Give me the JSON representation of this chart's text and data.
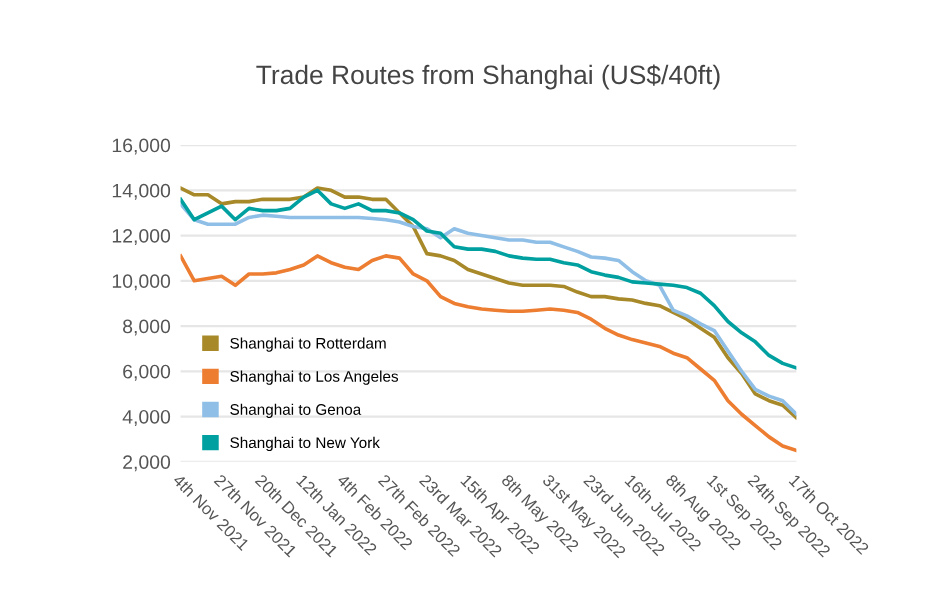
{
  "chart_data": {
    "type": "line",
    "title": "Trade Routes from Shanghai (US$/40ft)",
    "categories": [
      "4th Nov 2021",
      null,
      null,
      "27th Nov 2021",
      null,
      null,
      "20th Dec 2021",
      null,
      null,
      "12th Jan 2022",
      null,
      null,
      "4th Feb 2022",
      null,
      null,
      "27th Feb 2022",
      null,
      null,
      "23rd Mar 2022",
      null,
      null,
      "15th Apr 2022",
      null,
      null,
      "8th May 2022",
      null,
      null,
      "31st May 2022",
      null,
      null,
      "23rd Jun 2022",
      null,
      null,
      "16th Jul 2022",
      null,
      null,
      "8th Aug 2022",
      null,
      null,
      "1st Sep 2022",
      null,
      null,
      "24th Sep 2022",
      null,
      null,
      "17th Oct 2022"
    ],
    "series": [
      {
        "name": "Shanghai to Rotterdam",
        "color": "#a8892a",
        "values": [
          14100,
          13800,
          13800,
          13400,
          13500,
          13500,
          13600,
          13600,
          13600,
          13700,
          14100,
          14000,
          13700,
          13700,
          13600,
          13600,
          13000,
          12400,
          11200,
          11100,
          10900,
          10500,
          10300,
          10100,
          9900,
          9800,
          9800,
          9800,
          9750,
          9500,
          9300,
          9300,
          9200,
          9150,
          9000,
          8900,
          8600,
          8300,
          7900,
          7500,
          6600,
          5900,
          5000,
          4700,
          4500,
          3950
        ]
      },
      {
        "name": "Shanghai to Los Angeles",
        "color": "#ed7d31",
        "values": [
          11100,
          10000,
          10100,
          10200,
          9800,
          10300,
          10300,
          10350,
          10500,
          10700,
          11100,
          10800,
          10600,
          10500,
          10900,
          11100,
          11000,
          10300,
          10000,
          9300,
          9000,
          8850,
          8750,
          8700,
          8650,
          8650,
          8700,
          8750,
          8700,
          8600,
          8300,
          7900,
          7600,
          7400,
          7250,
          7100,
          6800,
          6600,
          6100,
          5600,
          4700,
          4100,
          3600,
          3100,
          2700,
          2500
        ]
      },
      {
        "name": "Shanghai to Genoa",
        "color": "#8fbfe6",
        "values": [
          13400,
          12700,
          12500,
          12500,
          12500,
          12800,
          12900,
          12850,
          12800,
          12800,
          12800,
          12800,
          12800,
          12800,
          12750,
          12700,
          12600,
          12400,
          12300,
          11900,
          12300,
          12100,
          12000,
          11900,
          11800,
          11800,
          11700,
          11700,
          11500,
          11300,
          11050,
          11000,
          10900,
          10400,
          10000,
          9800,
          8700,
          8450,
          8100,
          7800,
          6900,
          6000,
          5200,
          4900,
          4700,
          4100
        ]
      },
      {
        "name": "Shanghai to New York",
        "color": "#00a0a0",
        "values": [
          13600,
          12700,
          13000,
          13300,
          12700,
          13200,
          13100,
          13100,
          13200,
          13700,
          14000,
          13400,
          13200,
          13400,
          13100,
          13100,
          13000,
          12700,
          12200,
          12100,
          11500,
          11400,
          11400,
          11300,
          11100,
          11000,
          10950,
          10950,
          10800,
          10700,
          10400,
          10250,
          10150,
          9950,
          9900,
          9850,
          9800,
          9700,
          9450,
          8900,
          8200,
          7700,
          7300,
          6700,
          6350,
          6150
        ]
      }
    ],
    "ylim": [
      2000,
      16000
    ],
    "yticks": [
      {
        "value": 2000,
        "label": "2,000"
      },
      {
        "value": 4000,
        "label": "4,000"
      },
      {
        "value": 6000,
        "label": "6,000"
      },
      {
        "value": 8000,
        "label": "8,000"
      },
      {
        "value": 10000,
        "label": "10,000"
      },
      {
        "value": 12000,
        "label": "12,000"
      },
      {
        "value": 14000,
        "label": "14,000"
      },
      {
        "value": 16000,
        "label": "16,000"
      }
    ],
    "grid": "y",
    "legend": "bottom left",
    "marker": "none",
    "line_style": "solid"
  }
}
